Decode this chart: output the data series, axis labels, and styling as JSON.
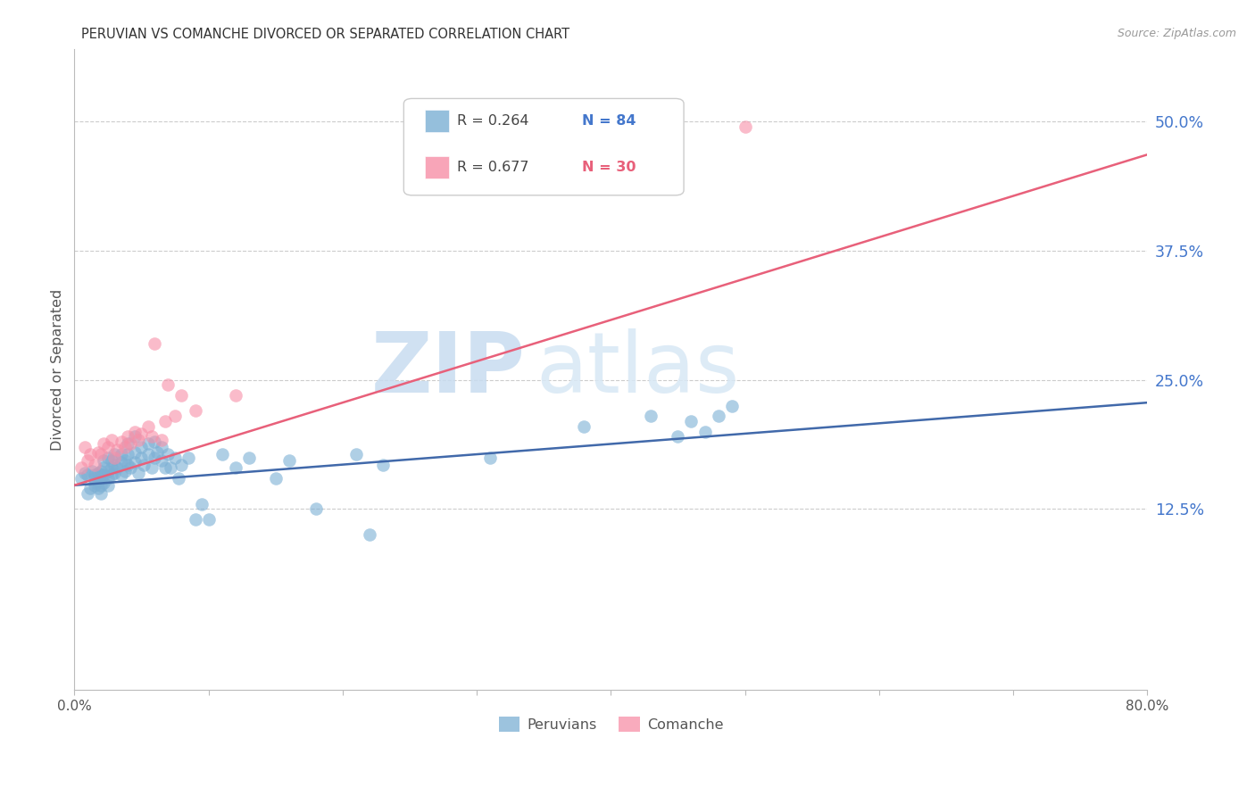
{
  "title": "PERUVIAN VS COMANCHE DIVORCED OR SEPARATED CORRELATION CHART",
  "source": "Source: ZipAtlas.com",
  "ylabel": "Divorced or Separated",
  "yticks": [
    "50.0%",
    "37.5%",
    "25.0%",
    "12.5%"
  ],
  "ytick_values": [
    0.5,
    0.375,
    0.25,
    0.125
  ],
  "xlim": [
    0.0,
    0.8
  ],
  "ylim": [
    -0.05,
    0.57
  ],
  "legend_blue_r": "R = 0.264",
  "legend_blue_n": "N = 84",
  "legend_pink_r": "R = 0.677",
  "legend_pink_n": "N = 30",
  "blue_color": "#7BAFD4",
  "pink_color": "#F78FA7",
  "blue_line_color": "#4169AA",
  "pink_line_color": "#E8607A",
  "watermark_zip": "ZIP",
  "watermark_atlas": "atlas",
  "blue_points_x": [
    0.005,
    0.008,
    0.01,
    0.01,
    0.012,
    0.013,
    0.015,
    0.015,
    0.015,
    0.015,
    0.018,
    0.018,
    0.018,
    0.02,
    0.02,
    0.02,
    0.02,
    0.02,
    0.022,
    0.022,
    0.022,
    0.022,
    0.025,
    0.025,
    0.025,
    0.025,
    0.028,
    0.028,
    0.028,
    0.03,
    0.03,
    0.03,
    0.032,
    0.035,
    0.035,
    0.035,
    0.038,
    0.038,
    0.04,
    0.04,
    0.04,
    0.042,
    0.045,
    0.045,
    0.045,
    0.048,
    0.05,
    0.05,
    0.052,
    0.055,
    0.055,
    0.058,
    0.06,
    0.06,
    0.062,
    0.065,
    0.065,
    0.068,
    0.07,
    0.072,
    0.075,
    0.078,
    0.08,
    0.085,
    0.09,
    0.095,
    0.1,
    0.11,
    0.12,
    0.13,
    0.15,
    0.16,
    0.18,
    0.21,
    0.22,
    0.23,
    0.31,
    0.38,
    0.43,
    0.45,
    0.46,
    0.47,
    0.48,
    0.49
  ],
  "blue_points_y": [
    0.155,
    0.16,
    0.14,
    0.158,
    0.145,
    0.162,
    0.15,
    0.158,
    0.148,
    0.155,
    0.152,
    0.16,
    0.145,
    0.148,
    0.155,
    0.162,
    0.14,
    0.158,
    0.15,
    0.158,
    0.165,
    0.172,
    0.155,
    0.162,
    0.148,
    0.175,
    0.158,
    0.165,
    0.172,
    0.16,
    0.168,
    0.178,
    0.165,
    0.158,
    0.17,
    0.178,
    0.162,
    0.172,
    0.168,
    0.178,
    0.188,
    0.165,
    0.17,
    0.18,
    0.195,
    0.16,
    0.175,
    0.185,
    0.168,
    0.178,
    0.188,
    0.165,
    0.175,
    0.19,
    0.18,
    0.172,
    0.185,
    0.165,
    0.178,
    0.165,
    0.175,
    0.155,
    0.168,
    0.175,
    0.115,
    0.13,
    0.115,
    0.178,
    0.165,
    0.175,
    0.155,
    0.172,
    0.125,
    0.178,
    0.1,
    0.168,
    0.175,
    0.205,
    0.215,
    0.195,
    0.21,
    0.2,
    0.215,
    0.225
  ],
  "pink_points_x": [
    0.005,
    0.008,
    0.01,
    0.012,
    0.015,
    0.018,
    0.02,
    0.022,
    0.025,
    0.028,
    0.03,
    0.032,
    0.035,
    0.038,
    0.04,
    0.042,
    0.045,
    0.048,
    0.05,
    0.055,
    0.058,
    0.06,
    0.065,
    0.068,
    0.07,
    0.075,
    0.08,
    0.09,
    0.12,
    0.5
  ],
  "pink_points_y": [
    0.165,
    0.185,
    0.172,
    0.178,
    0.168,
    0.18,
    0.178,
    0.188,
    0.185,
    0.192,
    0.175,
    0.182,
    0.19,
    0.185,
    0.195,
    0.188,
    0.2,
    0.192,
    0.198,
    0.205,
    0.195,
    0.285,
    0.192,
    0.21,
    0.245,
    0.215,
    0.235,
    0.22,
    0.235,
    0.495
  ],
  "blue_line_x": [
    0.0,
    0.8
  ],
  "blue_line_y": [
    0.148,
    0.228
  ],
  "pink_line_x": [
    0.0,
    0.8
  ],
  "pink_line_y": [
    0.148,
    0.468
  ]
}
